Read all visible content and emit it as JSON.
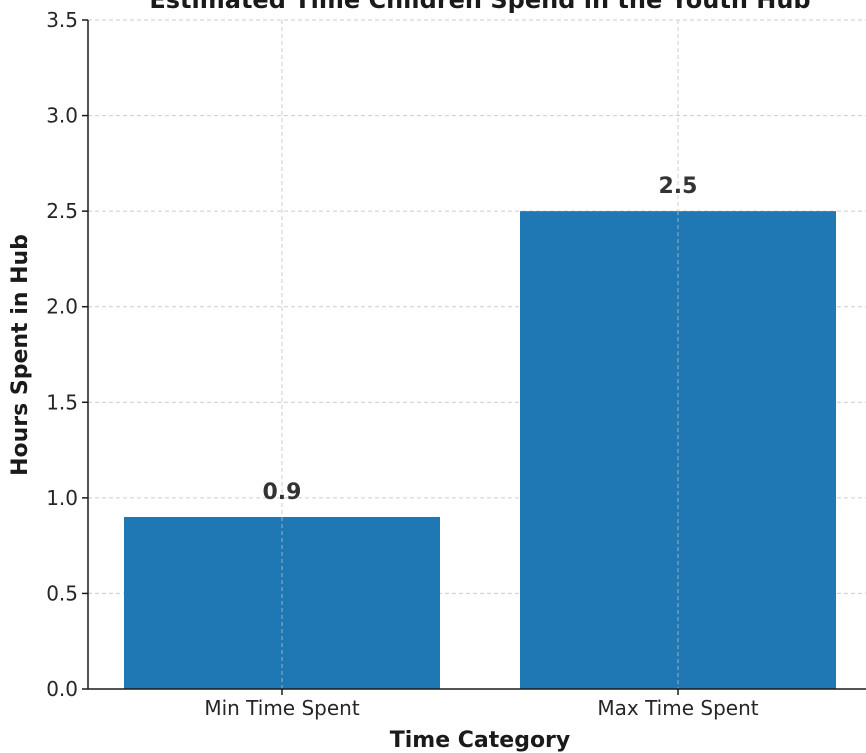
{
  "chart_data": {
    "type": "bar",
    "title": "Estimated Time Children Spend in the Youth Hub",
    "xlabel": "Time Category",
    "ylabel": "Hours Spent in Hub",
    "categories": [
      "Min Time Spent",
      "Max Time Spent"
    ],
    "values": [
      0.9,
      2.5
    ],
    "data_labels": [
      "0.9",
      "2.5"
    ],
    "y_ticks": [
      "0.0",
      "0.5",
      "1.0",
      "1.5",
      "2.0",
      "2.5",
      "3.0",
      "3.5"
    ],
    "ylim": [
      0,
      3.5
    ],
    "grid": true,
    "bar_color": "#1f77b4"
  }
}
